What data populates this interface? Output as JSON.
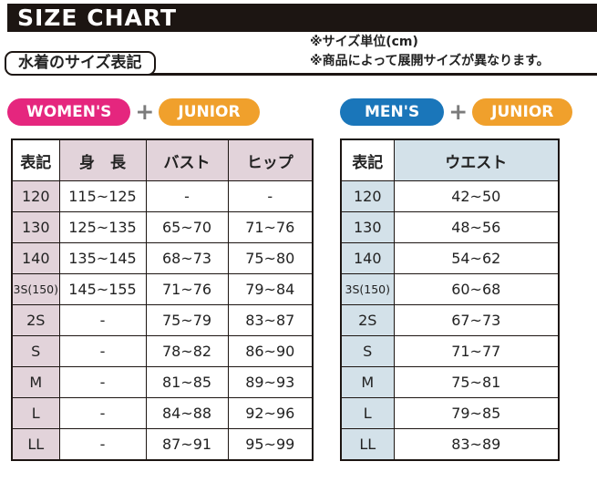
{
  "title_bar": {
    "title": "SIZE CHART"
  },
  "section_label": "水着のサイズ表記",
  "notes": {
    "line1": "※サイズ単位(cm)",
    "line2": "※商品によって展開サイズが異なります。"
  },
  "badges": {
    "women": {
      "label": "WOMEN'S",
      "color": "#e5267e"
    },
    "men": {
      "label": "MEN'S",
      "color": "#1a76ba"
    },
    "junior": {
      "label": "JUNIOR",
      "color": "#f0a02c"
    },
    "plus": "+"
  },
  "chart_data": [
    {
      "type": "table",
      "title": "WOMEN'S + JUNIOR サイズ表",
      "columns": [
        "表記",
        "身　長",
        "バスト",
        "ヒップ"
      ],
      "rows": [
        [
          "120",
          "115~125",
          "-",
          "-"
        ],
        [
          "130",
          "125~135",
          "65~70",
          "71~76"
        ],
        [
          "140",
          "135~145",
          "68~73",
          "75~80"
        ],
        [
          "3S(150)",
          "145~155",
          "71~76",
          "79~84"
        ],
        [
          "2S",
          "-",
          "75~79",
          "83~87"
        ],
        [
          "S",
          "-",
          "78~82",
          "86~90"
        ],
        [
          "M",
          "-",
          "81~85",
          "89~93"
        ],
        [
          "L",
          "-",
          "84~88",
          "92~96"
        ],
        [
          "LL",
          "-",
          "87~91",
          "95~99"
        ]
      ]
    },
    {
      "type": "table",
      "title": "MEN'S + JUNIOR サイズ表",
      "columns": [
        "表記",
        "ウエスト"
      ],
      "rows": [
        [
          "120",
          "42~50"
        ],
        [
          "130",
          "48~56"
        ],
        [
          "140",
          "54~62"
        ],
        [
          "3S(150)",
          "60~68"
        ],
        [
          "2S",
          "67~73"
        ],
        [
          "S",
          "71~77"
        ],
        [
          "M",
          "75~81"
        ],
        [
          "L",
          "79~85"
        ],
        [
          "LL",
          "83~89"
        ]
      ]
    }
  ],
  "colors": {
    "header_bar_bg": "#1c1512",
    "women_accent": "#e5267e",
    "men_accent": "#1a76ba",
    "junior_accent": "#f0a02c",
    "plus_gray": "#7b7b7b",
    "women_cell_bg": "#e2d3da",
    "men_cell_bg": "#d3e1e9",
    "table_border": "#1c1512",
    "text": "#222222"
  }
}
